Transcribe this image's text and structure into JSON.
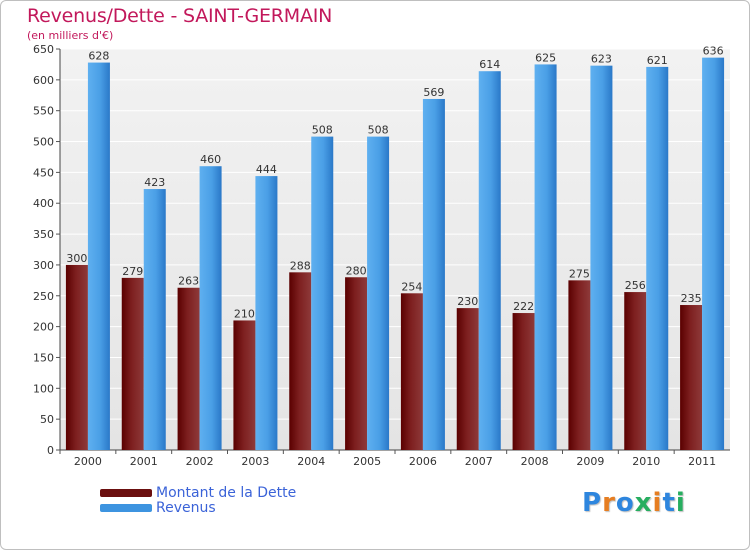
{
  "header": {
    "title": "Revenus/Dette - SAINT-GERMAIN",
    "subtitle": "(en milliers d'€)"
  },
  "chart_data": {
    "type": "bar",
    "title": "Revenus/Dette - SAINT-GERMAIN",
    "ylabel": "(en milliers d'€)",
    "xlabel": "",
    "categories": [
      "2000",
      "2001",
      "2002",
      "2003",
      "2004",
      "2005",
      "2006",
      "2007",
      "2008",
      "2009",
      "2010",
      "2011"
    ],
    "series": [
      {
        "name": "Montant de la Dette",
        "color": "#7a1a1a",
        "values": [
          300,
          279,
          263,
          210,
          288,
          280,
          254,
          230,
          222,
          275,
          256,
          235
        ]
      },
      {
        "name": "Revenus",
        "color": "#3d94e0",
        "values": [
          628,
          423,
          460,
          444,
          508,
          508,
          569,
          614,
          625,
          623,
          621,
          636
        ]
      }
    ],
    "ylim": [
      0,
      650
    ],
    "yticks": [
      0,
      50,
      100,
      150,
      200,
      250,
      300,
      350,
      400,
      450,
      500,
      550,
      600,
      650
    ],
    "grid": true,
    "legend_position": "bottom-left"
  },
  "legend": {
    "items": [
      {
        "label": "Montant de la Dette",
        "color": "#6b0f0f"
      },
      {
        "label": "Revenus",
        "color": "#3d94e0"
      }
    ]
  },
  "logo": {
    "text": "Proxiti",
    "letters": [
      {
        "ch": "P",
        "color": "#2e86de"
      },
      {
        "ch": "r",
        "color": "#e67e22"
      },
      {
        "ch": "o",
        "color": "#2e86de"
      },
      {
        "ch": "x",
        "color": "#27ae60"
      },
      {
        "ch": "i",
        "color": "#e67e22"
      },
      {
        "ch": "t",
        "color": "#2e86de"
      },
      {
        "ch": "i",
        "color": "#27ae60"
      }
    ]
  }
}
